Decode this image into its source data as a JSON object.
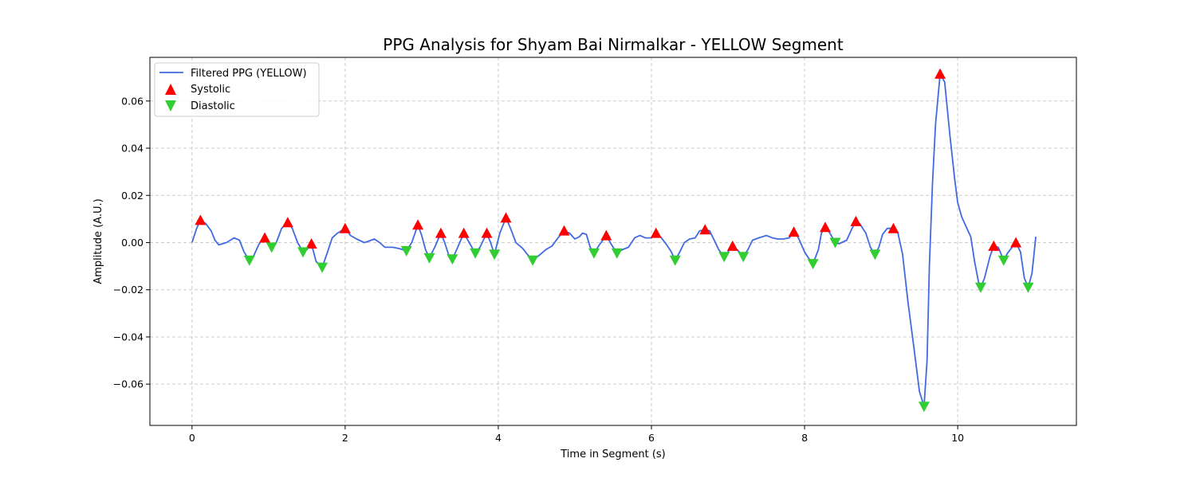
{
  "chart_data": {
    "type": "line",
    "title": "PPG Analysis for Shyam Bai Nirmalkar - YELLOW Segment",
    "xlabel": "Time in Segment (s)",
    "ylabel": "Amplitude (A.U.)",
    "xlim": [
      -0.55,
      11.55
    ],
    "ylim": [
      -0.0775,
      0.0785
    ],
    "xticks": [
      0,
      2,
      4,
      6,
      8,
      10
    ],
    "xtick_labels": [
      "0",
      "2",
      "4",
      "6",
      "8",
      "10"
    ],
    "yticks": [
      -0.06,
      -0.04,
      -0.02,
      0.0,
      0.02,
      0.04,
      0.06
    ],
    "ytick_labels": [
      "−0.06",
      "−0.04",
      "−0.02",
      "0.00",
      "0.02",
      "0.04",
      "0.06"
    ],
    "grid": true,
    "legend_position": "top-left",
    "series": [
      {
        "name": "Filtered PPG (YELLOW)",
        "kind": "line",
        "color": "#4169e1",
        "points": [
          [
            0,
            0.0
          ],
          [
            0.06,
            0.006
          ],
          [
            0.11,
            0.0095
          ],
          [
            0.18,
            0.008
          ],
          [
            0.25,
            0.005
          ],
          [
            0.3,
            0.001
          ],
          [
            0.35,
            -0.001
          ],
          [
            0.45,
            0.0
          ],
          [
            0.55,
            0.002
          ],
          [
            0.62,
            0.001
          ],
          [
            0.68,
            -0.004
          ],
          [
            0.75,
            -0.0075
          ],
          [
            0.8,
            -0.006
          ],
          [
            0.87,
            -0.001
          ],
          [
            0.93,
            0.002
          ],
          [
            0.98,
            0.001
          ],
          [
            1.04,
            -0.002
          ],
          [
            1.1,
            0.0
          ],
          [
            1.17,
            0.006
          ],
          [
            1.25,
            0.0085
          ],
          [
            1.31,
            0.006
          ],
          [
            1.38,
            0.0
          ],
          [
            1.45,
            -0.004
          ],
          [
            1.5,
            -0.003
          ],
          [
            1.56,
            -0.0005
          ],
          [
            1.62,
            -0.008
          ],
          [
            1.7,
            -0.0105
          ],
          [
            1.77,
            -0.004
          ],
          [
            1.83,
            0.002
          ],
          [
            1.9,
            0.004
          ],
          [
            2.0,
            0.006
          ],
          [
            2.07,
            0.003
          ],
          [
            2.15,
            0.0015
          ],
          [
            2.25,
            0.0
          ],
          [
            2.3,
            0.0005
          ],
          [
            2.38,
            0.0015
          ],
          [
            2.45,
            0.0
          ],
          [
            2.52,
            -0.002
          ],
          [
            2.62,
            -0.002
          ],
          [
            2.7,
            -0.0025
          ],
          [
            2.8,
            -0.0035
          ],
          [
            2.87,
            0.0
          ],
          [
            2.95,
            0.0075
          ],
          [
            3.0,
            0.003
          ],
          [
            3.05,
            -0.003
          ],
          [
            3.1,
            -0.0065
          ],
          [
            3.17,
            -0.002
          ],
          [
            3.25,
            0.004
          ],
          [
            3.3,
            0.0
          ],
          [
            3.35,
            -0.005
          ],
          [
            3.4,
            -0.007
          ],
          [
            3.47,
            -0.002
          ],
          [
            3.55,
            0.004
          ],
          [
            3.62,
            0.0
          ],
          [
            3.7,
            -0.0045
          ],
          [
            3.76,
            -0.002
          ],
          [
            3.85,
            0.004
          ],
          [
            3.9,
            0.0
          ],
          [
            3.95,
            -0.005
          ],
          [
            4.02,
            0.004
          ],
          [
            4.1,
            0.0105
          ],
          [
            4.16,
            0.006
          ],
          [
            4.23,
            0.0
          ],
          [
            4.32,
            -0.0025
          ],
          [
            4.38,
            -0.005
          ],
          [
            4.45,
            -0.0075
          ],
          [
            4.53,
            -0.0055
          ],
          [
            4.62,
            -0.003
          ],
          [
            4.7,
            -0.0015
          ],
          [
            4.78,
            0.002
          ],
          [
            4.86,
            0.005
          ],
          [
            4.93,
            0.004
          ],
          [
            5.0,
            0.0015
          ],
          [
            5.06,
            0.0025
          ],
          [
            5.1,
            0.004
          ],
          [
            5.15,
            0.0035
          ],
          [
            5.2,
            -0.002
          ],
          [
            5.25,
            -0.0045
          ],
          [
            5.32,
            -0.001
          ],
          [
            5.41,
            0.003
          ],
          [
            5.48,
            -0.001
          ],
          [
            5.55,
            -0.0045
          ],
          [
            5.62,
            -0.003
          ],
          [
            5.7,
            -0.002
          ],
          [
            5.78,
            0.002
          ],
          [
            5.85,
            0.003
          ],
          [
            5.92,
            0.002
          ],
          [
            6.0,
            0.002
          ],
          [
            6.06,
            0.004
          ],
          [
            6.13,
            0.002
          ],
          [
            6.2,
            -0.001
          ],
          [
            6.26,
            -0.004
          ],
          [
            6.31,
            -0.0075
          ],
          [
            6.37,
            -0.004
          ],
          [
            6.43,
            0.0
          ],
          [
            6.5,
            0.0015
          ],
          [
            6.57,
            0.002
          ],
          [
            6.63,
            0.005
          ],
          [
            6.7,
            0.0055
          ],
          [
            6.76,
            0.005
          ],
          [
            6.82,
            0.001
          ],
          [
            6.88,
            -0.003
          ],
          [
            6.95,
            -0.006
          ],
          [
            7.0,
            -0.004
          ],
          [
            7.06,
            -0.0015
          ],
          [
            7.12,
            -0.003
          ],
          [
            7.2,
            -0.006
          ],
          [
            7.26,
            -0.003
          ],
          [
            7.32,
            0.001
          ],
          [
            7.4,
            0.002
          ],
          [
            7.5,
            0.003
          ],
          [
            7.58,
            0.002
          ],
          [
            7.65,
            0.0015
          ],
          [
            7.72,
            0.0015
          ],
          [
            7.8,
            0.002
          ],
          [
            7.86,
            0.0045
          ],
          [
            7.92,
            0.002
          ],
          [
            8.0,
            -0.004
          ],
          [
            8.05,
            -0.0065
          ],
          [
            8.11,
            -0.009
          ],
          [
            8.18,
            -0.003
          ],
          [
            8.22,
            0.004
          ],
          [
            8.27,
            0.0065
          ],
          [
            8.33,
            0.004
          ],
          [
            8.4,
            0.0
          ],
          [
            8.45,
            -0.0005
          ],
          [
            8.55,
            0.001
          ],
          [
            8.62,
            0.006
          ],
          [
            8.67,
            0.009
          ],
          [
            8.72,
            0.008
          ],
          [
            8.8,
            0.004
          ],
          [
            8.86,
            -0.002
          ],
          [
            8.92,
            -0.005
          ],
          [
            8.97,
            -0.002
          ],
          [
            9.02,
            0.0035
          ],
          [
            9.08,
            0.006
          ],
          [
            9.16,
            0.006
          ],
          [
            9.22,
            0.004
          ],
          [
            9.28,
            -0.005
          ],
          [
            9.35,
            -0.025
          ],
          [
            9.43,
            -0.045
          ],
          [
            9.5,
            -0.063
          ],
          [
            9.56,
            -0.0695
          ],
          [
            9.6,
            -0.05
          ],
          [
            9.63,
            -0.01
          ],
          [
            9.67,
            0.025
          ],
          [
            9.71,
            0.05
          ],
          [
            9.77,
            0.0715
          ],
          [
            9.83,
            0.068
          ],
          [
            9.9,
            0.045
          ],
          [
            9.96,
            0.027
          ],
          [
            10.0,
            0.017
          ],
          [
            10.05,
            0.011
          ],
          [
            10.12,
            0.006
          ],
          [
            10.17,
            0.0025
          ],
          [
            10.22,
            -0.008
          ],
          [
            10.27,
            -0.0165
          ],
          [
            10.3,
            -0.019
          ],
          [
            10.35,
            -0.015
          ],
          [
            10.42,
            -0.006
          ],
          [
            10.47,
            -0.0015
          ],
          [
            10.53,
            -0.002
          ],
          [
            10.6,
            -0.0075
          ],
          [
            10.65,
            -0.0045
          ],
          [
            10.71,
            -0.002
          ],
          [
            10.76,
            0.0
          ],
          [
            10.82,
            -0.004
          ],
          [
            10.87,
            -0.015
          ],
          [
            10.92,
            -0.019
          ],
          [
            10.97,
            -0.013
          ],
          [
            11.02,
            0.0025
          ]
        ]
      },
      {
        "name": "Systolic",
        "kind": "marker",
        "marker": "triangle-up",
        "color": "#ff0000",
        "points": [
          [
            0.11,
            0.0095
          ],
          [
            0.95,
            0.002
          ],
          [
            1.25,
            0.0085
          ],
          [
            1.56,
            -0.0005
          ],
          [
            2.0,
            0.006
          ],
          [
            2.95,
            0.0075
          ],
          [
            3.25,
            0.004
          ],
          [
            3.55,
            0.004
          ],
          [
            3.85,
            0.004
          ],
          [
            4.1,
            0.0105
          ],
          [
            4.86,
            0.005
          ],
          [
            5.41,
            0.003
          ],
          [
            6.06,
            0.004
          ],
          [
            6.7,
            0.0055
          ],
          [
            7.06,
            -0.0015
          ],
          [
            7.86,
            0.0045
          ],
          [
            8.27,
            0.0065
          ],
          [
            8.67,
            0.009
          ],
          [
            9.16,
            0.006
          ],
          [
            9.77,
            0.0715
          ],
          [
            10.47,
            -0.0015
          ],
          [
            10.76,
            0.0
          ]
        ]
      },
      {
        "name": "Diastolic",
        "kind": "marker",
        "marker": "triangle-down",
        "color": "#32cd32",
        "points": [
          [
            0.75,
            -0.0075
          ],
          [
            1.04,
            -0.002
          ],
          [
            1.45,
            -0.004
          ],
          [
            1.7,
            -0.0105
          ],
          [
            2.8,
            -0.0035
          ],
          [
            3.1,
            -0.0065
          ],
          [
            3.4,
            -0.007
          ],
          [
            3.7,
            -0.0045
          ],
          [
            3.95,
            -0.005
          ],
          [
            4.45,
            -0.0075
          ],
          [
            5.25,
            -0.0045
          ],
          [
            5.55,
            -0.0045
          ],
          [
            6.31,
            -0.0075
          ],
          [
            6.95,
            -0.006
          ],
          [
            7.2,
            -0.006
          ],
          [
            8.11,
            -0.009
          ],
          [
            8.4,
            0.0
          ],
          [
            8.92,
            -0.005
          ],
          [
            9.56,
            -0.0695
          ],
          [
            10.3,
            -0.019
          ],
          [
            10.6,
            -0.0075
          ],
          [
            10.92,
            -0.019
          ]
        ]
      }
    ]
  }
}
